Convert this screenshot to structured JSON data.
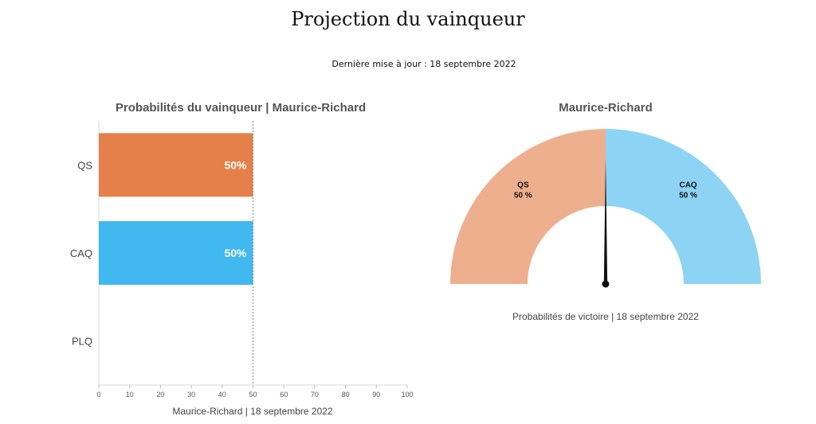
{
  "page": {
    "title": "Projection du vainqueur",
    "updated": "Dernière mise à jour : 18 septembre 2022"
  },
  "colors": {
    "qs": "#E5804A",
    "caq": "#41B8EF",
    "qs_gauge": "#EEAF8E",
    "caq_gauge": "#8DD3F4",
    "needle": "#111111"
  },
  "chart_data": [
    {
      "type": "bar",
      "orientation": "horizontal",
      "title": "Probabilités du vainqueur | Maurice-Richard",
      "xlabel": "Maurice-Richard | 18 septembre 2022",
      "categories": [
        "QS",
        "CAQ",
        "PLQ"
      ],
      "values": [
        50,
        50,
        0
      ],
      "data_labels": [
        "50%",
        "50%",
        ""
      ],
      "xlim": [
        0,
        100
      ],
      "xticks": [
        "0",
        "10",
        "20",
        "30",
        "40",
        "50",
        "60",
        "70",
        "80",
        "90",
        "100"
      ],
      "reference_line": 50
    },
    {
      "type": "pie",
      "variant": "gauge",
      "title": "Maurice-Richard",
      "caption": "Probabilités de victoire | 18 septembre 2022",
      "slices": [
        {
          "label": "QS",
          "value": 50,
          "value_label": "50 %"
        },
        {
          "label": "CAQ",
          "value": 50,
          "value_label": "50 %"
        }
      ],
      "needle_value": 50
    }
  ]
}
